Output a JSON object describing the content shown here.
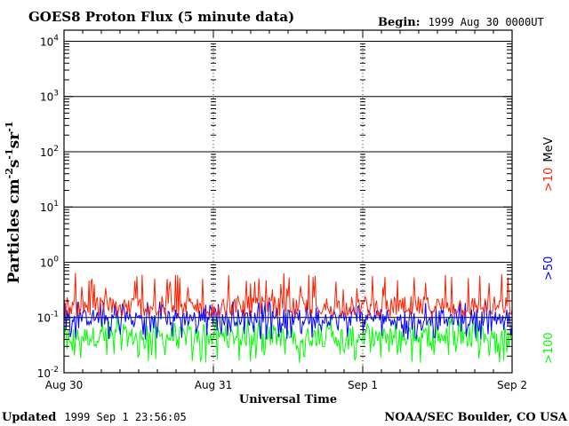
{
  "header": {
    "title": "GOES8 Proton Flux (5 minute data)",
    "begin_label": "Begin:",
    "begin_value": "1999 Aug 30 0000UT"
  },
  "footer": {
    "updated_label": "Updated",
    "updated_value": "1999 Sep  1 23:56:05",
    "credit": "NOAA/SEC Boulder, CO USA"
  },
  "chart_data": {
    "type": "line",
    "title": "GOES8 Proton Flux (5 minute data)",
    "xlabel": "Universal Time",
    "ylabel_parts": [
      "Particles cm",
      "-2",
      "s",
      "-1",
      "sr",
      "-1"
    ],
    "x_ticks": [
      "Aug 30",
      "Aug 31",
      "Sep 1",
      "Sep 2"
    ],
    "y_ticks": [
      {
        "base": "10",
        "exp": "-2"
      },
      {
        "base": "10",
        "exp": "-1"
      },
      {
        "base": "10",
        "exp": "0"
      },
      {
        "base": "10",
        "exp": "1"
      },
      {
        "base": "10",
        "exp": "2"
      },
      {
        "base": "10",
        "exp": "3"
      },
      {
        "base": "10",
        "exp": "4"
      }
    ],
    "y_scale": "log",
    "ylim_exp": [
      -2,
      4.2
    ],
    "xlim_days": [
      0,
      3
    ],
    "grid": "horizontal at each decade",
    "series": [
      {
        "name": ">10 MeV",
        "legend": ">10",
        "unit": "MeV",
        "color": "#ff2000",
        "typical": 0.16,
        "range": [
          0.1,
          0.65
        ]
      },
      {
        "name": ">50",
        "legend": ">50",
        "color": "#0000ff",
        "typical": 0.1,
        "range": [
          0.04,
          0.2
        ]
      },
      {
        "name": ">100",
        "legend": ">100",
        "color": "#00ff00",
        "typical": 0.045,
        "range": [
          0.015,
          0.1
        ]
      }
    ]
  }
}
